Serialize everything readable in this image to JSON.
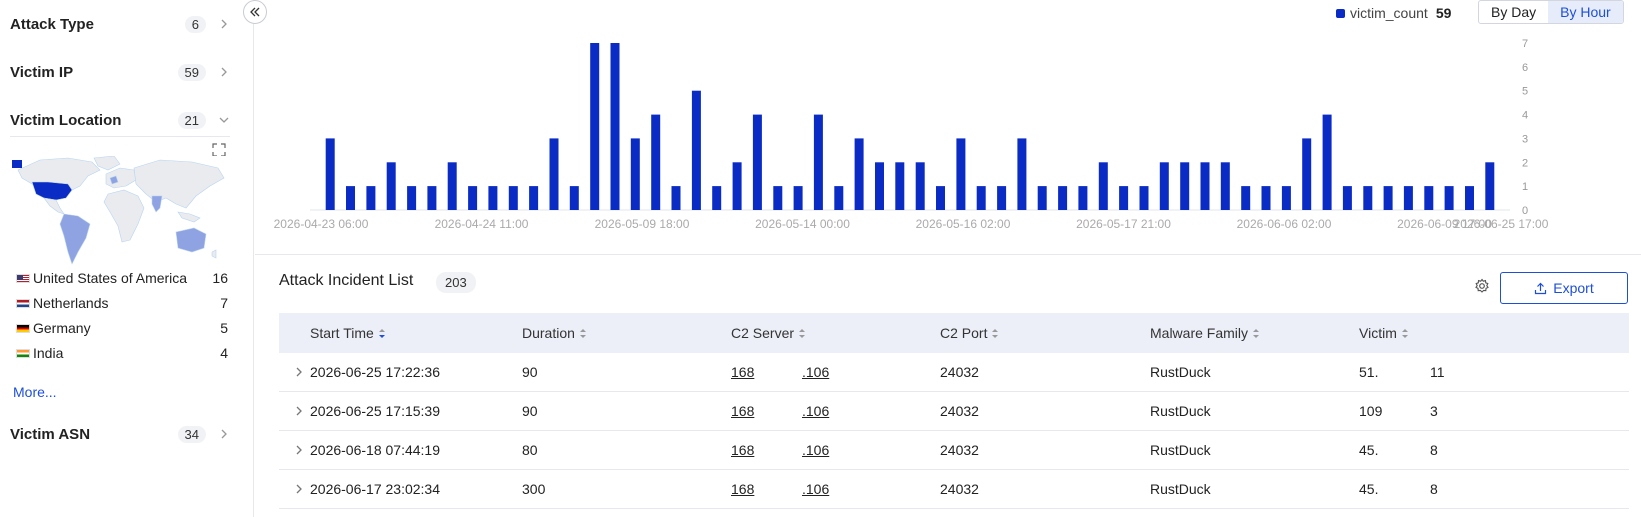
{
  "sidebar": {
    "facets": [
      {
        "title": "Attack Type",
        "count": "6"
      },
      {
        "title": "Victim IP",
        "count": "59"
      },
      {
        "title": "Victim Location",
        "count": "21"
      },
      {
        "title": "Victim ASN",
        "count": "34"
      }
    ],
    "locations": [
      {
        "name": "United States of America",
        "value": "16",
        "flag": "us"
      },
      {
        "name": "Netherlands",
        "value": "7",
        "flag": "nl"
      },
      {
        "name": "Germany",
        "value": "5",
        "flag": "de"
      },
      {
        "name": "India",
        "value": "4",
        "flag": "in"
      }
    ],
    "more_label": "More..."
  },
  "legend": {
    "label": "victim_count",
    "value": "59",
    "color": "#0a2bc4"
  },
  "toggle": {
    "by_day": "By Day",
    "by_hour": "By Hour",
    "active": "by_hour"
  },
  "chart_data": {
    "type": "bar",
    "x_tick_labels": [
      "2026-04-23 06:00",
      "2026-04-24 11:00",
      "2026-05-09 18:00",
      "2026-05-14 00:00",
      "2026-05-16 02:00",
      "2026-05-17 21:00",
      "2026-06-06 02:00",
      "2026-06-09 17:00",
      "2026-06-25 17:00"
    ],
    "y_ticks": [
      0,
      1,
      2,
      3,
      4,
      5,
      6,
      7
    ],
    "ylim": [
      0,
      7
    ],
    "series": [
      {
        "name": "victim_count",
        "values": [
          3,
          1,
          1,
          2,
          1,
          1,
          2,
          1,
          1,
          1,
          1,
          3,
          1,
          7,
          7,
          3,
          4,
          1,
          5,
          1,
          2,
          4,
          1,
          1,
          4,
          1,
          3,
          2,
          2,
          2,
          1,
          3,
          1,
          1,
          3,
          1,
          1,
          1,
          2,
          1,
          1,
          2,
          2,
          2,
          2,
          1,
          1,
          1,
          3,
          4,
          1,
          1,
          1,
          1,
          1,
          1,
          1,
          2
        ]
      }
    ],
    "color": "#0a2bc4"
  },
  "incidents": {
    "title": "Attack Incident List",
    "count": "203",
    "export_label": "Export",
    "columns": [
      "Start Time",
      "Duration",
      "C2 Server",
      "C2 Port",
      "Malware Family",
      "Victim"
    ],
    "rows": [
      {
        "start": "2026-06-25 17:22:36",
        "duration": "90",
        "c2_a": "168",
        "c2_b": ".106",
        "port": "24032",
        "family": "RustDuck",
        "victim_a": "51.",
        "victim_b": "11"
      },
      {
        "start": "2026-06-25 17:15:39",
        "duration": "90",
        "c2_a": "168",
        "c2_b": ".106",
        "port": "24032",
        "family": "RustDuck",
        "victim_a": "109",
        "victim_b": "3"
      },
      {
        "start": "2026-06-18 07:44:19",
        "duration": "80",
        "c2_a": "168",
        "c2_b": ".106",
        "port": "24032",
        "family": "RustDuck",
        "victim_a": "45.",
        "victim_b": "8"
      },
      {
        "start": "2026-06-17 23:02:34",
        "duration": "300",
        "c2_a": "168",
        "c2_b": ".106",
        "port": "24032",
        "family": "RustDuck",
        "victim_a": "45.",
        "victim_b": "8"
      }
    ]
  }
}
